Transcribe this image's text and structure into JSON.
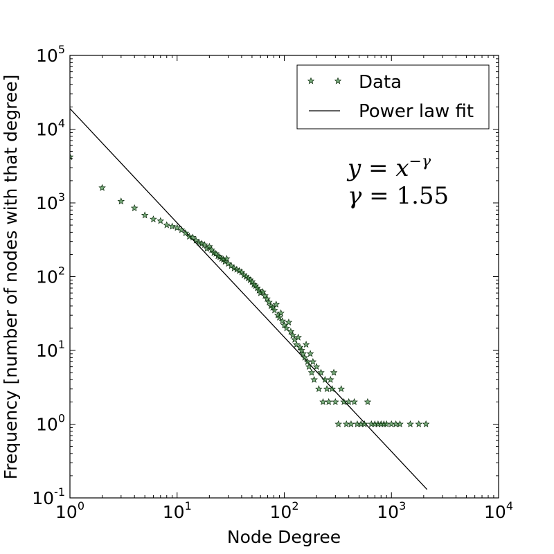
{
  "chart_data": {
    "type": "scatter",
    "xlabel": "Node Degree",
    "ylabel": "Frequency [number of nodes with that degree]",
    "xscale": "log",
    "yscale": "log",
    "xlim": [
      1,
      10000
    ],
    "ylim": [
      0.1,
      100000
    ],
    "x_ticks": [
      {
        "base": "10",
        "exp": "0",
        "value": 1
      },
      {
        "base": "10",
        "exp": "1",
        "value": 10
      },
      {
        "base": "10",
        "exp": "2",
        "value": 100
      },
      {
        "base": "10",
        "exp": "3",
        "value": 1000
      },
      {
        "base": "10",
        "exp": "4",
        "value": 10000
      }
    ],
    "y_ticks": [
      {
        "base": "10",
        "exp": "-1",
        "value": 0.1
      },
      {
        "base": "10",
        "exp": "0",
        "value": 1
      },
      {
        "base": "10",
        "exp": "1",
        "value": 10
      },
      {
        "base": "10",
        "exp": "2",
        "value": 100
      },
      {
        "base": "10",
        "exp": "3",
        "value": 1000
      },
      {
        "base": "10",
        "exp": "4",
        "value": 10000
      },
      {
        "base": "10",
        "exp": "5",
        "value": 100000
      }
    ],
    "grid": false,
    "legend_position": "top-right",
    "annotation": {
      "line1": {
        "lhs": "y",
        "eq": " = ",
        "base": "x",
        "exp": "−γ"
      },
      "line2": {
        "lhs": "γ",
        "eq": " = ",
        "value": "1.55"
      }
    },
    "series": [
      {
        "name": "Data",
        "kind": "scatter",
        "marker": "star",
        "color": "#2e7d32",
        "edge_color": "#0b2b0b",
        "points": [
          [
            1,
            4200
          ],
          [
            2,
            1600
          ],
          [
            3,
            1050
          ],
          [
            4,
            850
          ],
          [
            5,
            680
          ],
          [
            6,
            600
          ],
          [
            7,
            570
          ],
          [
            8,
            500
          ],
          [
            9,
            480
          ],
          [
            10,
            460
          ],
          [
            11,
            430
          ],
          [
            12,
            390
          ],
          [
            13,
            350
          ],
          [
            14,
            340
          ],
          [
            15,
            310
          ],
          [
            16,
            290
          ],
          [
            17,
            280
          ],
          [
            18,
            270
          ],
          [
            19,
            240
          ],
          [
            20,
            255
          ],
          [
            21,
            230
          ],
          [
            22,
            210
          ],
          [
            23,
            205
          ],
          [
            24,
            190
          ],
          [
            25,
            185
          ],
          [
            26,
            175
          ],
          [
            27,
            170
          ],
          [
            28,
            160
          ],
          [
            29,
            175
          ],
          [
            30,
            150
          ],
          [
            32,
            140
          ],
          [
            34,
            130
          ],
          [
            36,
            125
          ],
          [
            38,
            120
          ],
          [
            40,
            115
          ],
          [
            42,
            105
          ],
          [
            44,
            100
          ],
          [
            46,
            95
          ],
          [
            48,
            90
          ],
          [
            50,
            85
          ],
          [
            52,
            78
          ],
          [
            54,
            75
          ],
          [
            56,
            70
          ],
          [
            58,
            65
          ],
          [
            60,
            60
          ],
          [
            63,
            62
          ],
          [
            66,
            55
          ],
          [
            69,
            50
          ],
          [
            72,
            45
          ],
          [
            75,
            40
          ],
          [
            78,
            38
          ],
          [
            81,
            35
          ],
          [
            84,
            42
          ],
          [
            87,
            30
          ],
          [
            90,
            28
          ],
          [
            93,
            32
          ],
          [
            96,
            25
          ],
          [
            100,
            22
          ],
          [
            105,
            20
          ],
          [
            110,
            24
          ],
          [
            115,
            18
          ],
          [
            120,
            16
          ],
          [
            125,
            14
          ],
          [
            130,
            12
          ],
          [
            135,
            15
          ],
          [
            140,
            11
          ],
          [
            145,
            10
          ],
          [
            150,
            9
          ],
          [
            155,
            8
          ],
          [
            160,
            12
          ],
          [
            165,
            7
          ],
          [
            170,
            6
          ],
          [
            175,
            9
          ],
          [
            180,
            5
          ],
          [
            185,
            7
          ],
          [
            190,
            4
          ],
          [
            200,
            6
          ],
          [
            210,
            3
          ],
          [
            220,
            5
          ],
          [
            230,
            2
          ],
          [
            240,
            4
          ],
          [
            250,
            3
          ],
          [
            260,
            2
          ],
          [
            270,
            4
          ],
          [
            280,
            3
          ],
          [
            290,
            5
          ],
          [
            300,
            2
          ],
          [
            320,
            1
          ],
          [
            340,
            3
          ],
          [
            360,
            2
          ],
          [
            380,
            1
          ],
          [
            400,
            2
          ],
          [
            420,
            1
          ],
          [
            450,
            2
          ],
          [
            480,
            1
          ],
          [
            520,
            1
          ],
          [
            560,
            1
          ],
          [
            600,
            2
          ],
          [
            650,
            1
          ],
          [
            700,
            1
          ],
          [
            750,
            1
          ],
          [
            800,
            1
          ],
          [
            850,
            1
          ],
          [
            900,
            1
          ],
          [
            1000,
            1
          ],
          [
            1100,
            1
          ],
          [
            1200,
            1
          ],
          [
            1500,
            1
          ],
          [
            1800,
            1
          ],
          [
            2100,
            1
          ]
        ]
      },
      {
        "name": "Power law fit",
        "kind": "line",
        "color": "#000000",
        "points": [
          [
            1,
            19000
          ],
          [
            2150,
            0.13
          ]
        ]
      }
    ]
  }
}
